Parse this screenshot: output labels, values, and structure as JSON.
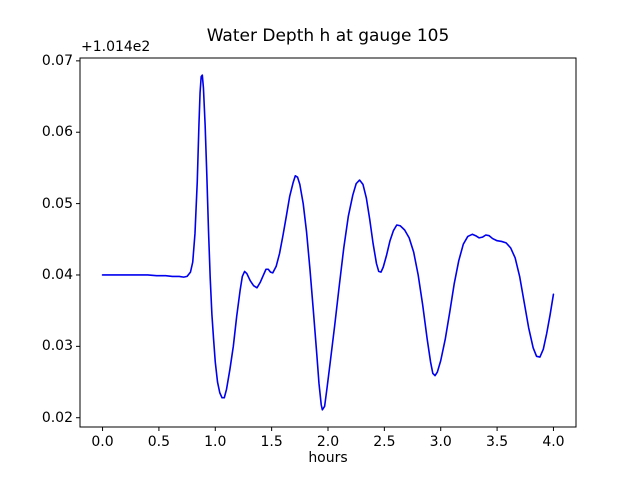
{
  "figure": {
    "background": "#ffffff",
    "text_color": "#000000",
    "spine_color": "#000000"
  },
  "chart_data": {
    "type": "line",
    "title": "Water Depth h at gauge 105",
    "xlabel": "hours",
    "ylabel": "",
    "y_offset_text": "+1.014e2",
    "grid": false,
    "legend": null,
    "xlim": [
      -0.2,
      4.2
    ],
    "ylim": [
      0.0187,
      0.0704
    ],
    "x_ticks": [
      0.0,
      0.5,
      1.0,
      1.5,
      2.0,
      2.5,
      3.0,
      3.5,
      4.0
    ],
    "x_tick_labels": [
      "0.0",
      "0.5",
      "1.0",
      "1.5",
      "2.0",
      "2.5",
      "3.0",
      "3.5",
      "4.0"
    ],
    "y_ticks": [
      0.02,
      0.03,
      0.04,
      0.05,
      0.06,
      0.07
    ],
    "y_tick_labels": [
      "0.02",
      "0.03",
      "0.04",
      "0.05",
      "0.06",
      "0.07"
    ],
    "series": [
      {
        "name": "water-depth-line",
        "color": "#0000ee",
        "line_width": 1.6,
        "points": [
          [
            0.0,
            0.04
          ],
          [
            0.08,
            0.04
          ],
          [
            0.16,
            0.04
          ],
          [
            0.24,
            0.04
          ],
          [
            0.32,
            0.04
          ],
          [
            0.4,
            0.04
          ],
          [
            0.48,
            0.0399
          ],
          [
            0.56,
            0.0399
          ],
          [
            0.62,
            0.0398
          ],
          [
            0.68,
            0.0398
          ],
          [
            0.72,
            0.0397
          ],
          [
            0.75,
            0.0398
          ],
          [
            0.78,
            0.0404
          ],
          [
            0.8,
            0.0418
          ],
          [
            0.82,
            0.0458
          ],
          [
            0.84,
            0.053
          ],
          [
            0.855,
            0.061
          ],
          [
            0.865,
            0.0655
          ],
          [
            0.875,
            0.0678
          ],
          [
            0.885,
            0.068
          ],
          [
            0.895,
            0.0662
          ],
          [
            0.91,
            0.061
          ],
          [
            0.925,
            0.054
          ],
          [
            0.94,
            0.0462
          ],
          [
            0.955,
            0.0396
          ],
          [
            0.97,
            0.0345
          ],
          [
            0.985,
            0.031
          ],
          [
            1.0,
            0.0278
          ],
          [
            1.02,
            0.025
          ],
          [
            1.04,
            0.0235
          ],
          [
            1.06,
            0.0228
          ],
          [
            1.08,
            0.0228
          ],
          [
            1.1,
            0.024
          ],
          [
            1.13,
            0.0268
          ],
          [
            1.16,
            0.03
          ],
          [
            1.19,
            0.0342
          ],
          [
            1.22,
            0.0378
          ],
          [
            1.24,
            0.0398
          ],
          [
            1.26,
            0.0405
          ],
          [
            1.28,
            0.0402
          ],
          [
            1.31,
            0.0392
          ],
          [
            1.34,
            0.0385
          ],
          [
            1.37,
            0.0382
          ],
          [
            1.4,
            0.039
          ],
          [
            1.43,
            0.0401
          ],
          [
            1.45,
            0.0408
          ],
          [
            1.47,
            0.0408
          ],
          [
            1.49,
            0.0404
          ],
          [
            1.51,
            0.0403
          ],
          [
            1.54,
            0.0412
          ],
          [
            1.57,
            0.043
          ],
          [
            1.6,
            0.0455
          ],
          [
            1.63,
            0.0482
          ],
          [
            1.66,
            0.051
          ],
          [
            1.69,
            0.0529
          ],
          [
            1.71,
            0.0539
          ],
          [
            1.73,
            0.0537
          ],
          [
            1.75,
            0.0527
          ],
          [
            1.78,
            0.05
          ],
          [
            1.81,
            0.046
          ],
          [
            1.84,
            0.0408
          ],
          [
            1.87,
            0.035
          ],
          [
            1.9,
            0.029
          ],
          [
            1.92,
            0.0248
          ],
          [
            1.94,
            0.0218
          ],
          [
            1.95,
            0.0211
          ],
          [
            1.97,
            0.0216
          ],
          [
            1.99,
            0.024
          ],
          [
            2.02,
            0.0278
          ],
          [
            2.06,
            0.033
          ],
          [
            2.1,
            0.0385
          ],
          [
            2.14,
            0.0438
          ],
          [
            2.18,
            0.0482
          ],
          [
            2.22,
            0.0512
          ],
          [
            2.25,
            0.0528
          ],
          [
            2.28,
            0.0533
          ],
          [
            2.31,
            0.0527
          ],
          [
            2.34,
            0.0508
          ],
          [
            2.37,
            0.0478
          ],
          [
            2.4,
            0.0444
          ],
          [
            2.43,
            0.0416
          ],
          [
            2.45,
            0.0405
          ],
          [
            2.47,
            0.0404
          ],
          [
            2.49,
            0.0411
          ],
          [
            2.52,
            0.0428
          ],
          [
            2.55,
            0.0448
          ],
          [
            2.58,
            0.0462
          ],
          [
            2.61,
            0.047
          ],
          [
            2.64,
            0.0469
          ],
          [
            2.68,
            0.0463
          ],
          [
            2.72,
            0.0452
          ],
          [
            2.76,
            0.0432
          ],
          [
            2.8,
            0.04
          ],
          [
            2.84,
            0.0358
          ],
          [
            2.88,
            0.031
          ],
          [
            2.91,
            0.0278
          ],
          [
            2.93,
            0.0262
          ],
          [
            2.95,
            0.0259
          ],
          [
            2.97,
            0.0264
          ],
          [
            3.0,
            0.028
          ],
          [
            3.04,
            0.031
          ],
          [
            3.08,
            0.0348
          ],
          [
            3.12,
            0.0388
          ],
          [
            3.16,
            0.042
          ],
          [
            3.2,
            0.0443
          ],
          [
            3.24,
            0.0454
          ],
          [
            3.28,
            0.0457
          ],
          [
            3.31,
            0.0455
          ],
          [
            3.34,
            0.0452
          ],
          [
            3.37,
            0.0453
          ],
          [
            3.4,
            0.0456
          ],
          [
            3.43,
            0.0455
          ],
          [
            3.46,
            0.0451
          ],
          [
            3.5,
            0.0448
          ],
          [
            3.54,
            0.0447
          ],
          [
            3.58,
            0.0445
          ],
          [
            3.62,
            0.0438
          ],
          [
            3.66,
            0.0424
          ],
          [
            3.7,
            0.0398
          ],
          [
            3.74,
            0.0362
          ],
          [
            3.78,
            0.0326
          ],
          [
            3.82,
            0.0298
          ],
          [
            3.85,
            0.0286
          ],
          [
            3.88,
            0.0285
          ],
          [
            3.91,
            0.0296
          ],
          [
            3.94,
            0.0318
          ],
          [
            3.97,
            0.0344
          ],
          [
            4.0,
            0.0373
          ]
        ]
      }
    ]
  }
}
